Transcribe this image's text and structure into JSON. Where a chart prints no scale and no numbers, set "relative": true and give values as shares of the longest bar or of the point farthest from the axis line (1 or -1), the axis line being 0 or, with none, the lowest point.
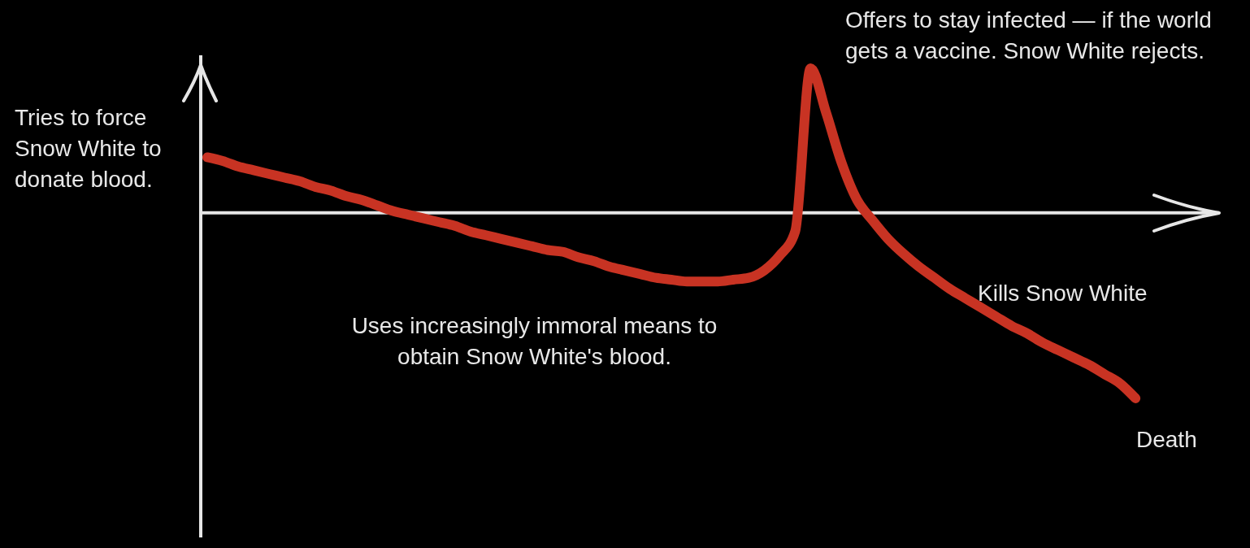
{
  "chart_data": {
    "type": "line",
    "relative": true,
    "categories": [
      null,
      null,
      null,
      null,
      null,
      null,
      null,
      null,
      null,
      null,
      null,
      null,
      null,
      null,
      null,
      null,
      null,
      null,
      null,
      null,
      null,
      null,
      null,
      null,
      null,
      null,
      null,
      null,
      null,
      null,
      null,
      null,
      null,
      null,
      null,
      null,
      null,
      null,
      null,
      null,
      null,
      null,
      null,
      null,
      null,
      null,
      null,
      null,
      null,
      null,
      null,
      null,
      null,
      null,
      null,
      null,
      null,
      null,
      null,
      null,
      null
    ],
    "series": [
      {
        "color": "#c83323",
        "values": [
          0.3,
          0.28,
          0.25,
          0.23,
          0.21,
          0.19,
          0.17,
          0.14,
          0.12,
          0.09,
          0.07,
          0.04,
          0.01,
          -0.01,
          -0.03,
          -0.05,
          -0.07,
          -0.1,
          -0.12,
          -0.14,
          -0.16,
          -0.18,
          -0.2,
          -0.21,
          -0.24,
          -0.26,
          -0.29,
          -0.31,
          -0.33,
          -0.35,
          -0.36,
          -0.37,
          -0.37,
          -0.37,
          -0.36,
          -0.35,
          -0.31,
          -0.23,
          -0.1,
          0.78,
          0.54,
          0.27,
          0.07,
          -0.04,
          -0.14,
          -0.22,
          -0.29,
          -0.35,
          -0.41,
          -0.46,
          -0.51,
          -0.56,
          -0.61,
          -0.65,
          -0.7,
          -0.74,
          -0.78,
          -0.82,
          -0.87,
          -0.92,
          -1
        ]
      }
    ],
    "annotations": [
      "Tries to force Snow White to donate blood.",
      "Offers to stay infected — if the world gets a vaccine. Snow White rejects.",
      "Uses increasingly immoral means to obtain Snow White's blood.",
      "Kills Snow White",
      "Death"
    ]
  }
}
